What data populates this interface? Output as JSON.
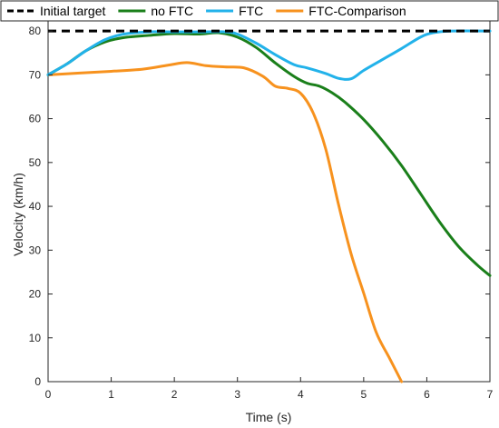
{
  "chart_data": {
    "type": "line",
    "title": "",
    "xlabel": "Time (s)",
    "ylabel": "Velocity (km/h)",
    "xlim": [
      0,
      7
    ],
    "ylim": [
      0,
      85
    ],
    "xticks": [
      0,
      1,
      2,
      3,
      4,
      5,
      6,
      7
    ],
    "yticks": [
      0,
      10,
      20,
      30,
      40,
      50,
      60,
      70,
      80
    ],
    "grid": false,
    "legend_position": "top",
    "series": [
      {
        "name": "Initial target",
        "color": "#000000",
        "style": "dashed",
        "points": [
          [
            0,
            80
          ],
          [
            7,
            80
          ]
        ]
      },
      {
        "name": "no FTC",
        "color": "#1a7f1a",
        "style": "solid",
        "points": [
          [
            0,
            70
          ],
          [
            0.3,
            72.5
          ],
          [
            0.6,
            75.5
          ],
          [
            0.9,
            77.5
          ],
          [
            1.2,
            78.5
          ],
          [
            1.6,
            79.0
          ],
          [
            2.0,
            79.4
          ],
          [
            2.4,
            79.3
          ],
          [
            2.7,
            79.6
          ],
          [
            3.0,
            78.6
          ],
          [
            3.3,
            76.2
          ],
          [
            3.6,
            72.7
          ],
          [
            3.9,
            69.6
          ],
          [
            4.1,
            68.1
          ],
          [
            4.3,
            67.4
          ],
          [
            4.5,
            65.9
          ],
          [
            4.7,
            63.8
          ],
          [
            5.0,
            59.8
          ],
          [
            5.3,
            54.9
          ],
          [
            5.6,
            49.3
          ],
          [
            5.9,
            42.9
          ],
          [
            6.2,
            36.5
          ],
          [
            6.5,
            30.9
          ],
          [
            6.8,
            26.6
          ],
          [
            7.0,
            24.2
          ]
        ]
      },
      {
        "name": "FTC",
        "color": "#22b2ea",
        "style": "solid",
        "points": [
          [
            0,
            70
          ],
          [
            0.3,
            72.5
          ],
          [
            0.6,
            75.5
          ],
          [
            0.9,
            78.0
          ],
          [
            1.2,
            79.3
          ],
          [
            1.6,
            79.8
          ],
          [
            2.0,
            79.8
          ],
          [
            2.4,
            79.8
          ],
          [
            2.8,
            79.8
          ],
          [
            3.0,
            79.3
          ],
          [
            3.3,
            77.2
          ],
          [
            3.6,
            74.6
          ],
          [
            3.9,
            72.3
          ],
          [
            4.1,
            71.6
          ],
          [
            4.4,
            70.3
          ],
          [
            4.6,
            69.2
          ],
          [
            4.8,
            69.1
          ],
          [
            5.0,
            71.0
          ],
          [
            5.3,
            73.5
          ],
          [
            5.6,
            76.0
          ],
          [
            5.9,
            78.6
          ],
          [
            6.1,
            79.6
          ],
          [
            6.4,
            80.0
          ],
          [
            7.0,
            80.0
          ]
        ]
      },
      {
        "name": "FTC-Comparison",
        "color": "#f7921e",
        "style": "solid",
        "points": [
          [
            0,
            70
          ],
          [
            0.5,
            70.4
          ],
          [
            1.0,
            70.8
          ],
          [
            1.5,
            71.3
          ],
          [
            1.9,
            72.2
          ],
          [
            2.2,
            72.8
          ],
          [
            2.5,
            72.1
          ],
          [
            2.8,
            71.8
          ],
          [
            3.1,
            71.6
          ],
          [
            3.4,
            69.7
          ],
          [
            3.6,
            67.4
          ],
          [
            3.8,
            66.9
          ],
          [
            4.0,
            65.8
          ],
          [
            4.2,
            61.3
          ],
          [
            4.4,
            53.0
          ],
          [
            4.6,
            40.5
          ],
          [
            4.8,
            29.2
          ],
          [
            5.0,
            20.2
          ],
          [
            5.2,
            11.2
          ],
          [
            5.4,
            5.6
          ],
          [
            5.6,
            0.0
          ]
        ]
      }
    ]
  }
}
